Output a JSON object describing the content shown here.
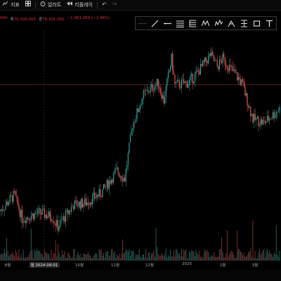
{
  "toolbar": {
    "indicators_label": "지표",
    "alerts_label": "얼러트",
    "replay_label": "리플레이",
    "undo_icon": "undo-icon",
    "redo_icon": "redo-icon"
  },
  "ohlc": {
    "open_value": "000",
    "high_label": "제",
    "high_value": "75,300,000",
    "close_label": "종",
    "close_value": "78,301,000",
    "change_value": "−1,961,000 (−2.46%)",
    "down_color": "#e0303a"
  },
  "drawing_tools": [
    "crosshair-icon",
    "trend-line-icon",
    "horizontal-line-icon",
    "fib-retracement-icon",
    "pitchfork-icon",
    "pattern-icon",
    "elliott-wave-icon",
    "long-position-icon",
    "projection-icon",
    "rectangle-icon",
    "text-icon"
  ],
  "x_axis": {
    "labels": [
      "8월",
      "9월",
      "10월",
      "11월",
      "12월",
      "2025",
      "2월",
      "3월"
    ],
    "highlight_label": "월 2024-09-01"
  },
  "colors": {
    "up": "#26a69a",
    "down": "#ef5350",
    "background": "#000000",
    "price_line": "#7a2a2a"
  },
  "chart_data": {
    "type": "candlestick",
    "x_start": "2024-07-16",
    "x_end": "2025-03-24",
    "interval": "1 day",
    "close_path": [
      [
        "2024-07-16",
        82000000
      ],
      [
        "2024-07-29",
        90000000
      ],
      [
        "2024-08-05",
        78000000
      ],
      [
        "2024-08-20",
        81000000
      ],
      [
        "2024-09-01",
        79000000
      ],
      [
        "2024-09-06",
        74000000
      ],
      [
        "2024-09-20",
        85000000
      ],
      [
        "2024-10-01",
        86000000
      ],
      [
        "2024-10-15",
        91000000
      ],
      [
        "2024-10-29",
        102000000
      ],
      [
        "2024-11-05",
        98000000
      ],
      [
        "2024-11-12",
        125000000
      ],
      [
        "2024-11-22",
        140000000
      ],
      [
        "2024-12-05",
        146000000
      ],
      [
        "2024-12-10",
        137000000
      ],
      [
        "2024-12-17",
        158000000
      ],
      [
        "2024-12-20",
        145000000
      ],
      [
        "2025-01-01",
        146000000
      ],
      [
        "2025-01-08",
        150000000
      ],
      [
        "2025-01-21",
        160000000
      ],
      [
        "2025-01-27",
        154000000
      ],
      [
        "2025-02-01",
        158000000
      ],
      [
        "2025-02-18",
        146000000
      ],
      [
        "2025-02-28",
        128000000
      ],
      [
        "2025-03-10",
        126000000
      ],
      [
        "2025-03-24",
        133000000
      ]
    ],
    "y_range": [
      68000000,
      168000000
    ],
    "price_line": 145000000,
    "volume_note": "volume bars along bottom",
    "grid": false
  }
}
